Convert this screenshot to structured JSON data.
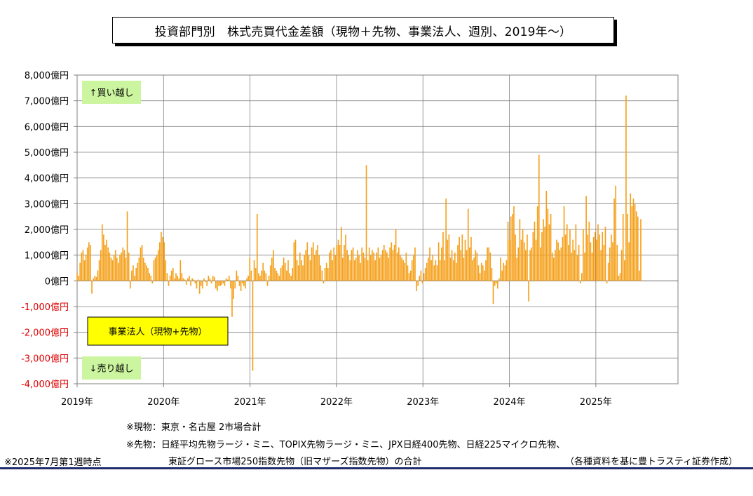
{
  "title": "投資部門別　株式売買代金差額（現物＋先物、事業法人、週別、2019年〜）",
  "notes": {
    "spot": "※現物：東京・名古屋 2市場合計",
    "futures_line1": "※先物：日経平均先物ラージ・ミニ、TOPIX先物ラージ・ミニ、JPX日経400先物、日経225マイクロ先物、",
    "futures_line2": "東証グロース市場250指数先物（旧マザーズ指数先物）の合計",
    "as_of": "※2025年7月第1週時点",
    "source": "（各種資料を基に豊トラスティ証券作成）"
  },
  "chart_data": {
    "type": "bar",
    "title": "投資部門別　株式売買代金差額（現物＋先物、事業法人、週別、2019年〜）",
    "xlabel": "",
    "ylabel": "",
    "unit": "億円",
    "xlim": [
      2019.0,
      2025.95
    ],
    "ylim": [
      -4000,
      8000
    ],
    "grid": true,
    "bar_color": "#f5a01a",
    "y_ticks": [
      "8,000億円",
      "7,000億円",
      "6,000億円",
      "5,000億円",
      "4,000億円",
      "3,000億円",
      "2,000億円",
      "1,000億円",
      "0億円",
      "-1,000億円",
      "-2,000億円",
      "-3,000億円",
      "-4,000億円"
    ],
    "y_tick_values": [
      8000,
      7000,
      6000,
      5000,
      4000,
      3000,
      2000,
      1000,
      0,
      -1000,
      -2000,
      -3000,
      -4000
    ],
    "negative_tick_color": "#e00000",
    "x_ticks": [
      "2019年",
      "2020年",
      "2021年",
      "2022年",
      "2023年",
      "2024年",
      "2025年"
    ],
    "x_tick_values": [
      2019,
      2020,
      2021,
      2022,
      2023,
      2024,
      2025
    ],
    "annotations": {
      "buy": "↑買い越し",
      "sell": "↓売り越し",
      "series_label": "事業法人（現物+先物）"
    },
    "colors": {
      "buy_sell_box": "#ccf5a0",
      "series_box": "#ffff00"
    },
    "series": [
      {
        "name": "事業法人（現物+先物）",
        "values": [
          300,
          200,
          700,
          1100,
          1200,
          800,
          1000,
          1300,
          1500,
          1400,
          -500,
          100,
          200,
          150,
          400,
          800,
          1200,
          2200,
          1800,
          1400,
          1600,
          1300,
          1100,
          900,
          800,
          1000,
          1200,
          900,
          700,
          1000,
          1100,
          1300,
          1200,
          900,
          2700,
          1100,
          -300,
          400,
          600,
          200,
          500,
          700,
          900,
          1300,
          1400,
          900,
          700,
          600,
          500,
          300,
          200,
          -100,
          800,
          900,
          1000,
          1200,
          1500,
          1900,
          1700,
          1500,
          800,
          300,
          -200,
          200,
          400,
          500,
          100,
          300,
          200,
          100,
          800,
          300,
          100,
          50,
          -150,
          100,
          200,
          -200,
          100,
          50,
          -100,
          -300,
          50,
          -500,
          -200,
          -300,
          100,
          -50,
          -200,
          200,
          100,
          -100,
          200,
          150,
          -300,
          -400,
          -200,
          -200,
          -150,
          -100,
          -200,
          100,
          50,
          200,
          -300,
          -1400,
          -700,
          -300,
          400,
          200,
          -200,
          -400,
          -100,
          -200,
          -300,
          100,
          200,
          900,
          400,
          -3500,
          800,
          500,
          2600,
          300,
          200,
          400,
          700,
          400,
          300,
          -200,
          200,
          600,
          900,
          1200,
          500,
          400,
          300,
          200,
          500,
          600,
          900,
          700,
          400,
          800,
          300,
          200,
          500,
          1500,
          1600,
          800,
          600,
          1100,
          800,
          600,
          1000,
          1200,
          1500,
          1000,
          800,
          1300,
          1500,
          1000,
          1200,
          1400,
          1000,
          600,
          400,
          -100,
          500,
          700,
          500,
          1100,
          1200,
          800,
          1300,
          1000,
          1400,
          1600,
          1400,
          2100,
          900,
          1400,
          1800,
          1200,
          1000,
          800,
          1200,
          1300,
          800,
          900,
          1200,
          1000,
          700,
          1300,
          1100,
          900,
          4500,
          800,
          1300,
          1000,
          1200,
          1100,
          800,
          1100,
          1300,
          900,
          1000,
          1200,
          1400,
          1200,
          1100,
          900,
          1300,
          1500,
          1200,
          1400,
          2000,
          1100,
          1300,
          1000,
          900,
          800,
          700,
          1100,
          600,
          300,
          400,
          800,
          1000,
          1300,
          -400,
          -200,
          200,
          400,
          -100,
          300,
          500,
          700,
          900,
          1300,
          800,
          1000,
          600,
          800,
          600,
          1500,
          800,
          1300,
          1900,
          800,
          3200,
          1600,
          1800,
          900,
          1200,
          800,
          1100,
          700,
          1400,
          1700,
          1200,
          1800,
          900,
          1600,
          1200,
          2800,
          1300,
          1700,
          800,
          900,
          1200,
          1100,
          600,
          300,
          700,
          600,
          400,
          800,
          1300,
          1300,
          1100,
          500,
          -900,
          -200,
          -100,
          -300,
          100,
          900,
          400,
          700,
          600,
          800,
          2300,
          1600,
          2500,
          2600,
          2900,
          1800,
          900,
          1300,
          2400,
          1600,
          2000,
          1500,
          1200,
          1800,
          -800,
          1200,
          1300,
          1900,
          2300,
          1600,
          2900,
          4900,
          1300,
          1900,
          2400,
          2100,
          3500,
          2800,
          2200,
          2600,
          1100,
          900,
          1200,
          1600,
          1500,
          1200,
          1300,
          1700,
          2900,
          1800,
          2200,
          1400,
          2000,
          1100,
          1600,
          1200,
          2200,
          1000,
          1400,
          -100,
          300,
          2000,
          1100,
          3300,
          1800,
          2300,
          1500,
          1100,
          1700,
          1900,
          1600,
          2200,
          1800,
          1200,
          1900,
          1400,
          2100,
          -100,
          700,
          1300,
          1800,
          1500,
          3200,
          3700,
          1400,
          200,
          300,
          1200,
          2600,
          800,
          7200,
          2600,
          1500,
          3400,
          2900,
          3200,
          3000,
          2700,
          2500,
          400,
          2400
        ]
      }
    ]
  }
}
